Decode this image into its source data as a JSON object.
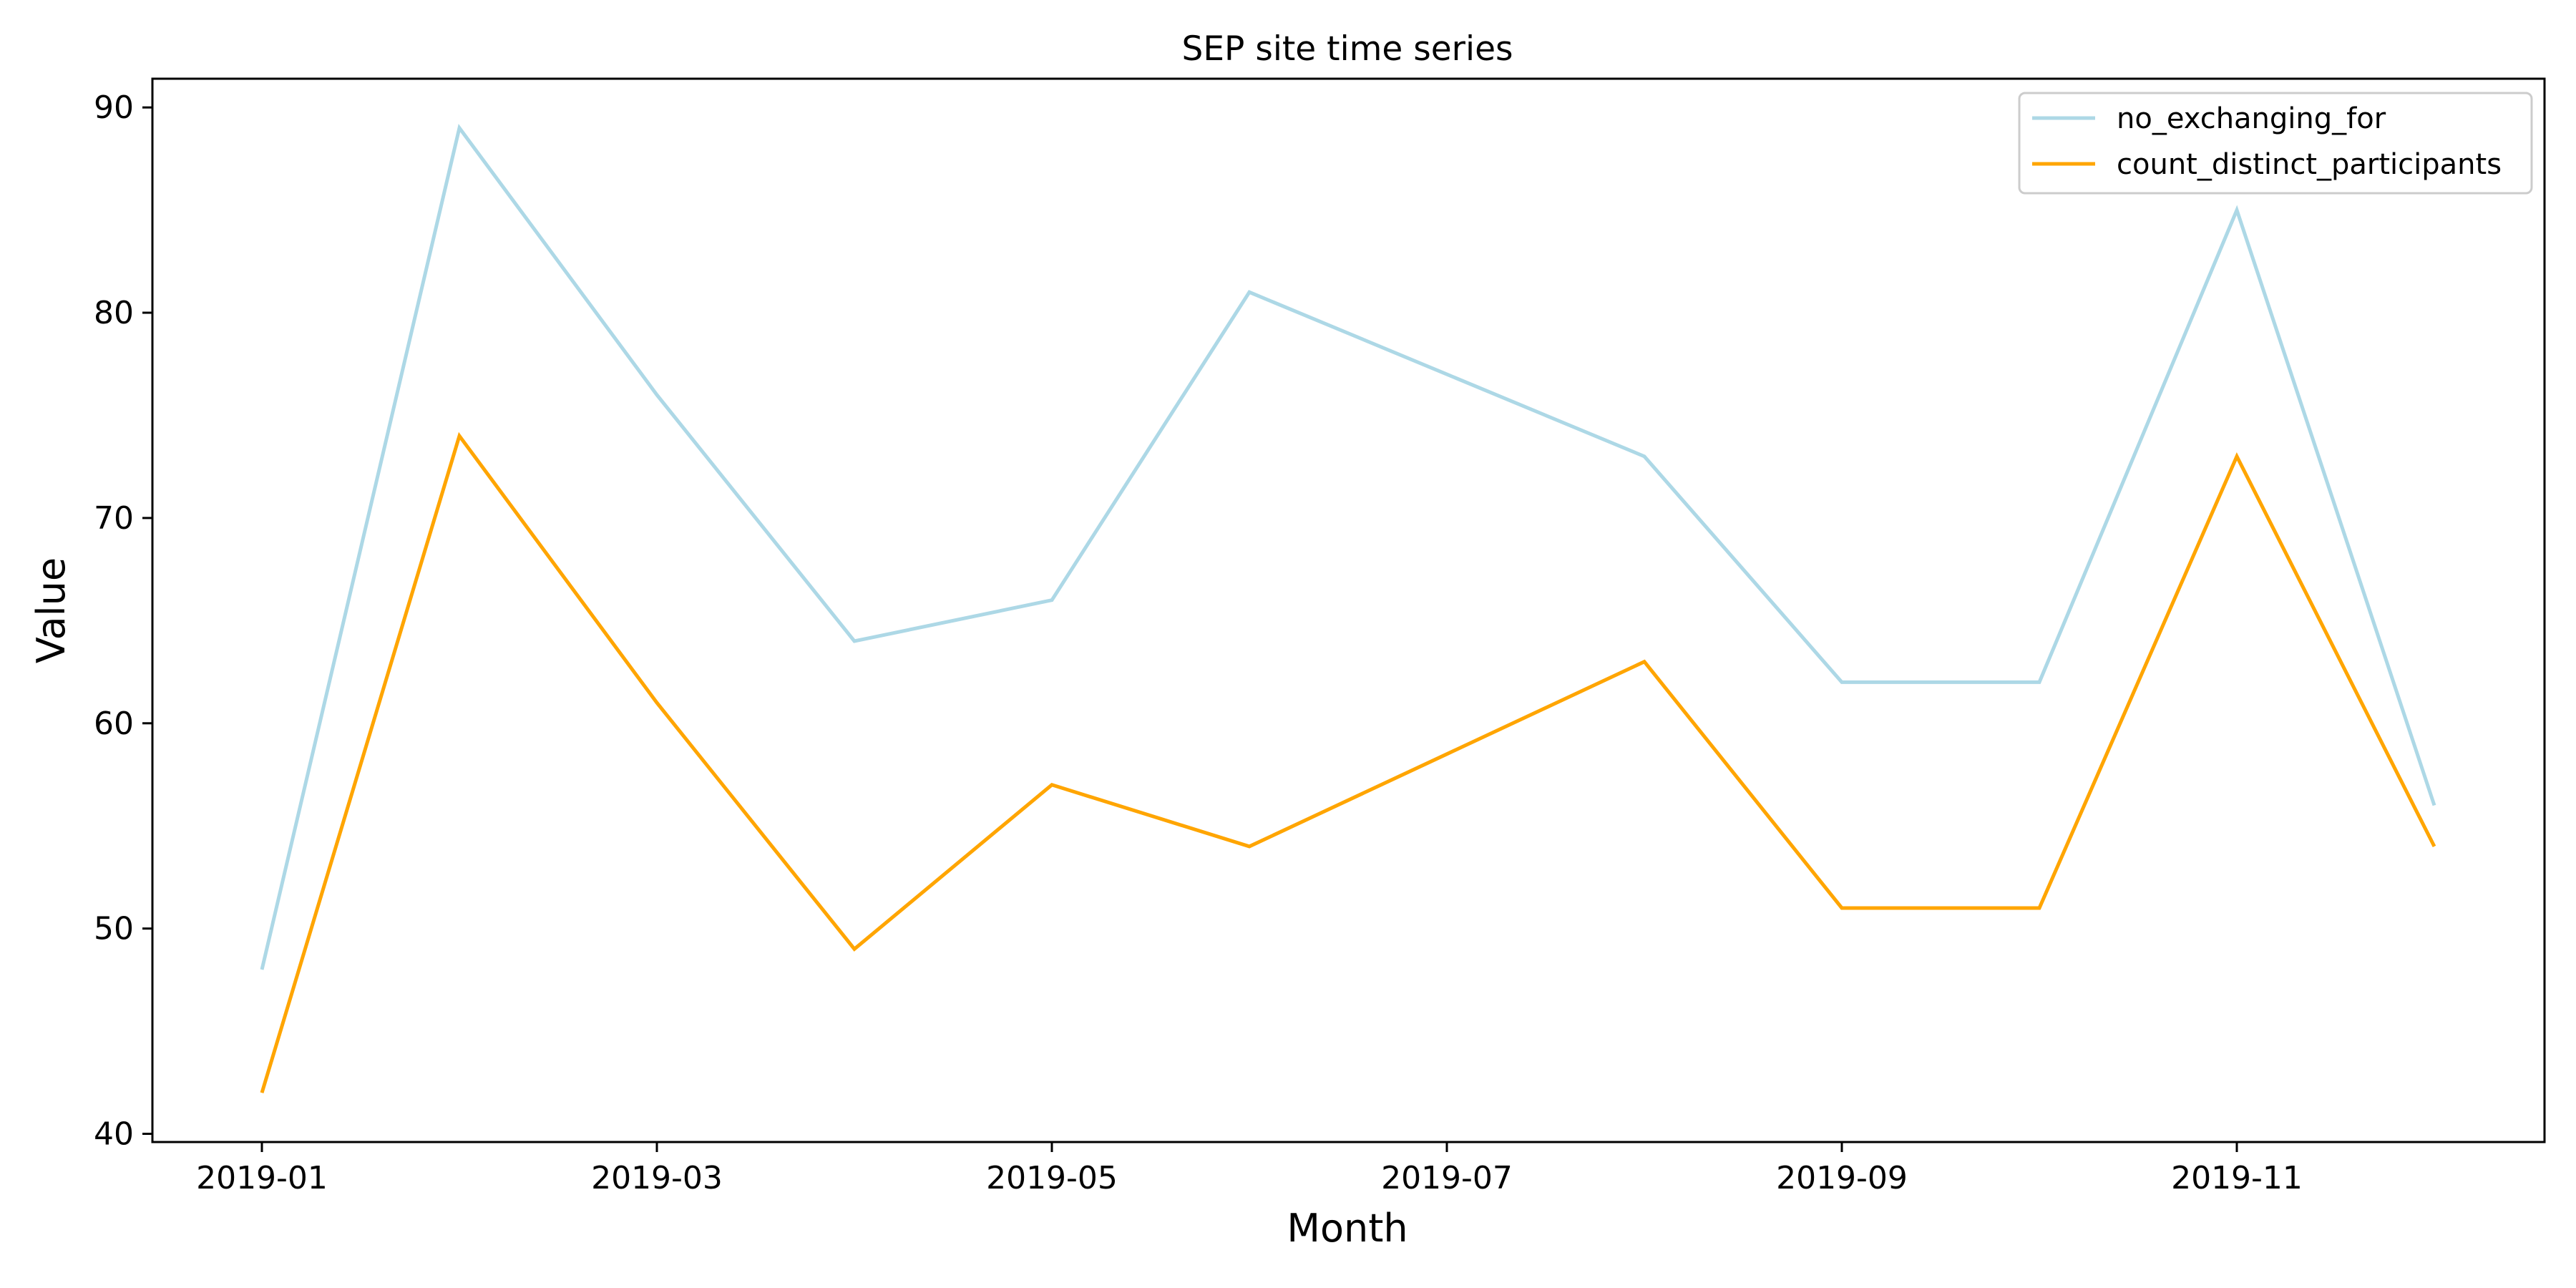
{
  "chart_data": {
    "type": "line",
    "title": "SEP site time series",
    "xlabel": "Month",
    "ylabel": "Value",
    "x": [
      "2019-01",
      "2019-02",
      "2019-03",
      "2019-04",
      "2019-05",
      "2019-06",
      "2019-07",
      "2019-08",
      "2019-09",
      "2019-10",
      "2019-11",
      "2019-12"
    ],
    "xticks": [
      "2019-01",
      "2019-03",
      "2019-05",
      "2019-07",
      "2019-09",
      "2019-11"
    ],
    "yticks": [
      40,
      50,
      60,
      70,
      80,
      90
    ],
    "ylim": [
      39.6,
      91.4
    ],
    "grid": false,
    "legend_position": "top-right",
    "series": [
      {
        "name": "no_exchanging_for",
        "color": "#add8e6",
        "values": [
          48,
          89,
          76,
          64,
          66,
          81,
          77,
          73,
          62,
          62,
          85,
          56
        ]
      },
      {
        "name": "count_distinct_participants",
        "color": "#ffa500",
        "values": [
          42,
          74,
          61,
          49,
          57,
          54,
          58.5,
          63,
          51,
          51,
          73,
          54
        ]
      }
    ]
  }
}
